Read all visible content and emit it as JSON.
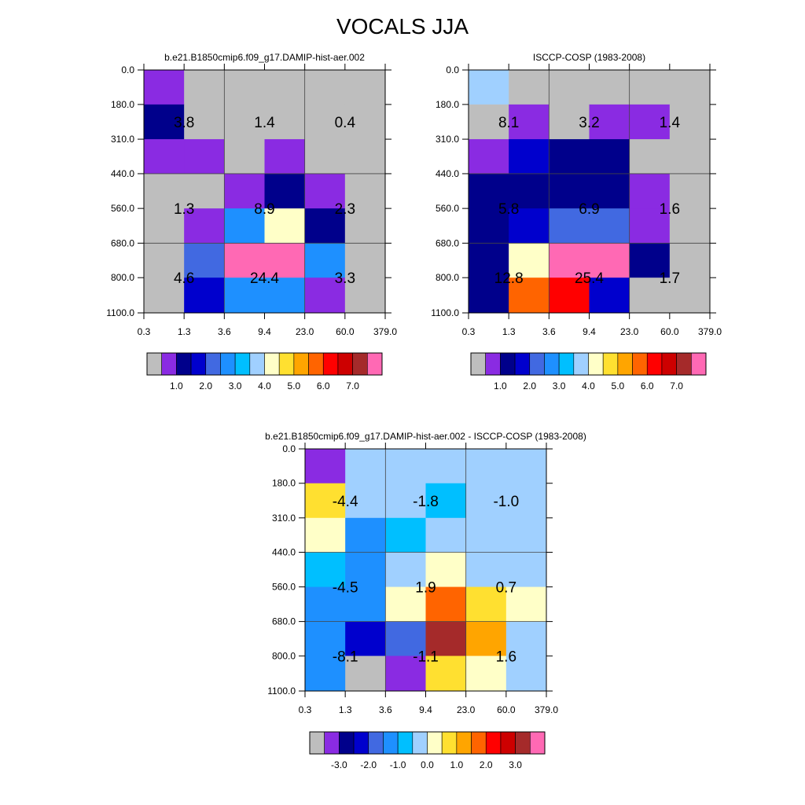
{
  "title": "VOCALS JJA",
  "palettes": {
    "absolute": [
      "#bebebe",
      "#8a2be2",
      "#00008b",
      "#0000cd",
      "#4169e1",
      "#1e90ff",
      "#00bfff",
      "#a0d0ff",
      "#ffffc8",
      "#ffe030",
      "#ffa500",
      "#ff6400",
      "#ff0000",
      "#cd0000",
      "#a52a2a",
      "#ff69b4"
    ],
    "difference": [
      "#bebebe",
      "#8a2be2",
      "#00008b",
      "#0000cd",
      "#4169e1",
      "#1e90ff",
      "#00bfff",
      "#a0d0ff",
      "#ffffc8",
      "#ffe030",
      "#ffa500",
      "#ff6400",
      "#ff0000",
      "#cd0000",
      "#a52a2a",
      "#ff69b4"
    ]
  },
  "chart_data": [
    {
      "type": "heatmap",
      "title": "b.e21.B1850cmip6.f09_g17.DAMIP-hist-aer.002",
      "x_ticks": [
        "0.3",
        "1.3",
        "3.6",
        "9.4",
        "23.0",
        "60.0",
        "379.0"
      ],
      "y_ticks": [
        "0.0",
        "180.0",
        "310.0",
        "440.0",
        "560.0",
        "680.0",
        "800.0",
        "1100.0"
      ],
      "cell_colors": [
        [
          1,
          0,
          0,
          0,
          0,
          0
        ],
        [
          2,
          0,
          0,
          0,
          0,
          0
        ],
        [
          1,
          1,
          0,
          1,
          0,
          0
        ],
        [
          0,
          0,
          1,
          2,
          1,
          0
        ],
        [
          0,
          1,
          5,
          8,
          2,
          0
        ],
        [
          0,
          4,
          15,
          15,
          5,
          0
        ],
        [
          0,
          3,
          5,
          5,
          1,
          0
        ]
      ],
      "annotations": [
        "3.8",
        "1.4",
        "0.4",
        "1.3",
        "8.9",
        "2.3",
        "4.6",
        "24.4",
        "3.3"
      ],
      "colorbar_labels": [
        "1.0",
        "2.0",
        "3.0",
        "4.0",
        "5.0",
        "6.0",
        "7.0"
      ]
    },
    {
      "type": "heatmap",
      "title": "ISCCP-COSP (1983-2008)",
      "x_ticks": [
        "0.3",
        "1.3",
        "3.6",
        "9.4",
        "23.0",
        "60.0",
        "379.0"
      ],
      "y_ticks": [
        "0.0",
        "180.0",
        "310.0",
        "440.0",
        "560.0",
        "680.0",
        "800.0",
        "1100.0"
      ],
      "cell_colors": [
        [
          7,
          0,
          0,
          0,
          0,
          0
        ],
        [
          0,
          1,
          0,
          1,
          1,
          0
        ],
        [
          1,
          3,
          2,
          2,
          0,
          0
        ],
        [
          2,
          2,
          2,
          2,
          1,
          0
        ],
        [
          2,
          3,
          4,
          4,
          1,
          0
        ],
        [
          2,
          8,
          15,
          15,
          2,
          0
        ],
        [
          2,
          11,
          12,
          3,
          0,
          0
        ]
      ],
      "annotations": [
        "8.1",
        "3.2",
        "1.4",
        "5.8",
        "6.9",
        "1.6",
        "12.8",
        "25.4",
        "1.7"
      ],
      "colorbar_labels": [
        "1.0",
        "2.0",
        "3.0",
        "4.0",
        "5.0",
        "6.0",
        "7.0"
      ]
    },
    {
      "type": "heatmap",
      "title": "b.e21.B1850cmip6.f09_g17.DAMIP-hist-aer.002 - ISCCP-COSP (1983-2008)",
      "x_ticks": [
        "0.3",
        "1.3",
        "3.6",
        "9.4",
        "23.0",
        "60.0",
        "379.0"
      ],
      "y_ticks": [
        "0.0",
        "180.0",
        "310.0",
        "440.0",
        "560.0",
        "680.0",
        "800.0",
        "1100.0"
      ],
      "cell_colors": [
        [
          1,
          7,
          7,
          7,
          7,
          7
        ],
        [
          9,
          7,
          7,
          6,
          7,
          7
        ],
        [
          8,
          5,
          6,
          7,
          7,
          7
        ],
        [
          6,
          5,
          7,
          8,
          7,
          7
        ],
        [
          5,
          5,
          8,
          11,
          9,
          8
        ],
        [
          5,
          3,
          4,
          14,
          10,
          7
        ],
        [
          5,
          0,
          1,
          9,
          8,
          7
        ]
      ],
      "annotations": [
        "-4.4",
        "-1.8",
        "-1.0",
        "-4.5",
        "1.9",
        "0.7",
        "-8.1",
        "-1.1",
        "1.6"
      ],
      "colorbar_labels": [
        "-3.0",
        "-2.0",
        "-1.0",
        "0.0",
        "1.0",
        "2.0",
        "3.0"
      ]
    }
  ]
}
